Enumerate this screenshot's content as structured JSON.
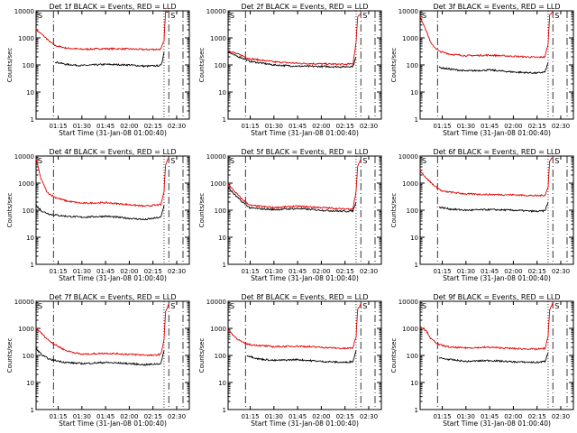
{
  "common": {
    "xlabel": "Start Time (31-Jan-08 01:00:40)",
    "ylabel": "Counts/sec",
    "x_ticks": [
      "01:15",
      "01:30",
      "01:45",
      "02:00",
      "02:15",
      "02:30"
    ],
    "y_ticks": [
      "1",
      "10",
      "100",
      "1000",
      "10000"
    ],
    "corner_labels": [
      "S",
      "S"
    ],
    "series": [
      {
        "name": "Events",
        "color": "#000000"
      },
      {
        "name": "LLD",
        "color": "#e00000"
      }
    ]
  },
  "chart_data": [
    {
      "type": "line",
      "title": "Det 1f BLACK = Events, RED = LLD",
      "xlabel": "Start Time (31-Jan-08 01:00:40)",
      "ylabel": "Counts/sec",
      "y_scale": "log",
      "ylim": [
        1,
        10000
      ],
      "xlim": [
        "01:01",
        "02:38"
      ],
      "x_ticks": [
        "01:15",
        "01:30",
        "01:45",
        "02:00",
        "02:15",
        "02:30"
      ],
      "lld": [
        [
          "01:01",
          2000
        ],
        [
          "01:05",
          1300
        ],
        [
          "01:10",
          700
        ],
        [
          "01:13",
          520
        ],
        [
          "01:20",
          420
        ],
        [
          "01:30",
          380
        ],
        [
          "01:45",
          400
        ],
        [
          "02:00",
          390
        ],
        [
          "02:10",
          370
        ],
        [
          "02:20",
          380
        ],
        [
          "02:22",
          800
        ],
        [
          "02:23",
          9000
        ],
        [
          "02:25",
          10000
        ]
      ],
      "events": [
        [
          "01:13",
          130
        ],
        [
          "01:20",
          105
        ],
        [
          "01:30",
          95
        ],
        [
          "01:45",
          105
        ],
        [
          "02:00",
          100
        ],
        [
          "02:10",
          90
        ],
        [
          "02:20",
          95
        ],
        [
          "02:21",
          150
        ],
        [
          "02:22",
          300
        ]
      ],
      "vlines": [
        {
          "t": "01:12",
          "style": "dashdot"
        },
        {
          "t": "02:22",
          "style": "dotted"
        },
        {
          "t": "02:25",
          "style": "dashdot"
        },
        {
          "t": "02:34",
          "style": "dashdot"
        }
      ]
    },
    {
      "type": "line",
      "title": "Det 2f BLACK = Events, RED = LLD",
      "xlabel": "Start Time (31-Jan-08 01:00:40)",
      "ylabel": "Counts/sec",
      "y_scale": "log",
      "ylim": [
        1,
        10000
      ],
      "xlim": [
        "01:01",
        "02:38"
      ],
      "x_ticks": [
        "01:15",
        "01:30",
        "01:45",
        "02:00",
        "02:15",
        "02:30"
      ],
      "lld": [
        [
          "01:01",
          350
        ],
        [
          "01:05",
          280
        ],
        [
          "01:10",
          220
        ],
        [
          "01:15",
          170
        ],
        [
          "01:30",
          130
        ],
        [
          "01:45",
          115
        ],
        [
          "02:00",
          110
        ],
        [
          "02:15",
          105
        ],
        [
          "02:20",
          110
        ],
        [
          "02:22",
          700
        ],
        [
          "02:23",
          6000
        ],
        [
          "02:25",
          8000
        ]
      ],
      "events": [
        [
          "01:01",
          300
        ],
        [
          "01:05",
          230
        ],
        [
          "01:10",
          180
        ],
        [
          "01:15",
          135
        ],
        [
          "01:30",
          100
        ],
        [
          "01:45",
          90
        ],
        [
          "02:00",
          88
        ],
        [
          "02:15",
          85
        ],
        [
          "02:20",
          90
        ],
        [
          "02:22",
          200
        ]
      ],
      "vlines": [
        {
          "t": "01:12",
          "style": "dashdot"
        },
        {
          "t": "02:22",
          "style": "dotted"
        },
        {
          "t": "02:25",
          "style": "dashdot"
        },
        {
          "t": "02:34",
          "style": "dashdot"
        }
      ]
    },
    {
      "type": "line",
      "title": "Det 3f BLACK = Events, RED = LLD",
      "xlabel": "Start Time (31-Jan-08 01:00:40)",
      "ylabel": "Counts/sec",
      "y_scale": "log",
      "ylim": [
        1,
        10000
      ],
      "xlim": [
        "01:01",
        "02:38"
      ],
      "x_ticks": [
        "01:15",
        "01:30",
        "01:45",
        "02:00",
        "02:15",
        "02:30"
      ],
      "lld": [
        [
          "01:01",
          6000
        ],
        [
          "01:04",
          2500
        ],
        [
          "01:08",
          600
        ],
        [
          "01:13",
          320
        ],
        [
          "01:20",
          250
        ],
        [
          "01:30",
          220
        ],
        [
          "01:45",
          230
        ],
        [
          "02:00",
          210
        ],
        [
          "02:15",
          190
        ],
        [
          "02:20",
          200
        ],
        [
          "02:22",
          600
        ],
        [
          "02:23",
          7000
        ],
        [
          "02:25",
          10000
        ]
      ],
      "events": [
        [
          "01:13",
          80
        ],
        [
          "01:20",
          70
        ],
        [
          "01:30",
          60
        ],
        [
          "01:45",
          65
        ],
        [
          "02:00",
          55
        ],
        [
          "02:15",
          50
        ],
        [
          "02:20",
          55
        ],
        [
          "02:22",
          120
        ]
      ],
      "vlines": [
        {
          "t": "01:12",
          "style": "dashdot"
        },
        {
          "t": "02:22",
          "style": "dotted"
        },
        {
          "t": "02:25",
          "style": "dashdot"
        },
        {
          "t": "02:34",
          "style": "dashdot"
        }
      ]
    },
    {
      "type": "line",
      "title": "Det 4f BLACK = Events, RED = LLD",
      "xlabel": "Start Time (31-Jan-08 01:00:40)",
      "ylabel": "Counts/sec",
      "y_scale": "log",
      "ylim": [
        1,
        10000
      ],
      "xlim": [
        "01:01",
        "02:38"
      ],
      "x_ticks": [
        "01:15",
        "01:30",
        "01:45",
        "02:00",
        "02:15",
        "02:30"
      ],
      "lld": [
        [
          "01:01",
          8000
        ],
        [
          "01:04",
          1500
        ],
        [
          "01:08",
          450
        ],
        [
          "01:13",
          300
        ],
        [
          "01:20",
          220
        ],
        [
          "01:30",
          180
        ],
        [
          "01:45",
          190
        ],
        [
          "02:00",
          160
        ],
        [
          "02:10",
          140
        ],
        [
          "02:20",
          160
        ],
        [
          "02:22",
          500
        ],
        [
          "02:23",
          5000
        ],
        [
          "02:25",
          9000
        ]
      ],
      "events": [
        [
          "01:01",
          150
        ],
        [
          "01:05",
          90
        ],
        [
          "01:10",
          70
        ],
        [
          "01:20",
          60
        ],
        [
          "01:30",
          55
        ],
        [
          "01:45",
          60
        ],
        [
          "02:00",
          50
        ],
        [
          "02:10",
          45
        ],
        [
          "02:20",
          55
        ],
        [
          "02:22",
          150
        ]
      ],
      "vlines": [
        {
          "t": "01:12",
          "style": "dashdot"
        },
        {
          "t": "02:22",
          "style": "dotted"
        },
        {
          "t": "02:25",
          "style": "dashdot"
        },
        {
          "t": "02:34",
          "style": "dashdot"
        }
      ]
    },
    {
      "type": "line",
      "title": "Det 5f BLACK = Events, RED = LLD",
      "xlabel": "Start Time (31-Jan-08 01:00:40)",
      "ylabel": "Counts/sec",
      "y_scale": "log",
      "ylim": [
        1,
        10000
      ],
      "xlim": [
        "01:01",
        "02:38"
      ],
      "x_ticks": [
        "01:15",
        "01:30",
        "01:45",
        "02:00",
        "02:15",
        "02:30"
      ],
      "lld": [
        [
          "01:01",
          900
        ],
        [
          "01:05",
          500
        ],
        [
          "01:10",
          250
        ],
        [
          "01:15",
          150
        ],
        [
          "01:30",
          125
        ],
        [
          "01:45",
          140
        ],
        [
          "02:00",
          125
        ],
        [
          "02:15",
          110
        ],
        [
          "02:20",
          115
        ],
        [
          "02:22",
          500
        ],
        [
          "02:23",
          4000
        ],
        [
          "02:25",
          8000
        ]
      ],
      "events": [
        [
          "01:01",
          700
        ],
        [
          "01:05",
          380
        ],
        [
          "01:10",
          200
        ],
        [
          "01:15",
          120
        ],
        [
          "01:30",
          105
        ],
        [
          "01:45",
          115
        ],
        [
          "02:00",
          100
        ],
        [
          "02:15",
          90
        ],
        [
          "02:20",
          95
        ],
        [
          "02:22",
          200
        ]
      ],
      "vlines": [
        {
          "t": "01:12",
          "style": "dashdot"
        },
        {
          "t": "02:22",
          "style": "dotted"
        },
        {
          "t": "02:25",
          "style": "dashdot"
        },
        {
          "t": "02:34",
          "style": "dashdot"
        }
      ]
    },
    {
      "type": "line",
      "title": "Det 6f BLACK = Events, RED = LLD",
      "xlabel": "Start Time (31-Jan-08 01:00:40)",
      "ylabel": "Counts/sec",
      "y_scale": "log",
      "ylim": [
        1,
        10000
      ],
      "xlim": [
        "01:01",
        "02:38"
      ],
      "x_ticks": [
        "01:15",
        "01:30",
        "01:45",
        "02:00",
        "02:15",
        "02:30"
      ],
      "lld": [
        [
          "01:01",
          3000
        ],
        [
          "01:05",
          1500
        ],
        [
          "01:10",
          800
        ],
        [
          "01:15",
          500
        ],
        [
          "01:30",
          400
        ],
        [
          "01:45",
          380
        ],
        [
          "02:00",
          370
        ],
        [
          "02:15",
          340
        ],
        [
          "02:20",
          360
        ],
        [
          "02:22",
          700
        ],
        [
          "02:23",
          7000
        ],
        [
          "02:25",
          9000
        ]
      ],
      "events": [
        [
          "01:13",
          130
        ],
        [
          "01:20",
          110
        ],
        [
          "01:30",
          100
        ],
        [
          "01:45",
          105
        ],
        [
          "02:00",
          100
        ],
        [
          "02:15",
          90
        ],
        [
          "02:20",
          95
        ],
        [
          "02:22",
          200
        ]
      ],
      "vlines": [
        {
          "t": "01:12",
          "style": "dashdot"
        },
        {
          "t": "02:22",
          "style": "dotted"
        },
        {
          "t": "02:25",
          "style": "dashdot"
        },
        {
          "t": "02:34",
          "style": "dashdot"
        }
      ]
    },
    {
      "type": "line",
      "title": "Det 7f BLACK = Events, RED = LLD",
      "xlabel": "Start Time (31-Jan-08 01:00:40)",
      "ylabel": "Counts/sec",
      "y_scale": "log",
      "ylim": [
        1,
        10000
      ],
      "xlim": [
        "01:01",
        "02:38"
      ],
      "x_ticks": [
        "01:15",
        "01:30",
        "01:45",
        "02:00",
        "02:15",
        "02:30"
      ],
      "lld": [
        [
          "01:01",
          1000
        ],
        [
          "01:04",
          700
        ],
        [
          "01:08",
          400
        ],
        [
          "01:13",
          250
        ],
        [
          "01:20",
          150
        ],
        [
          "01:30",
          110
        ],
        [
          "01:45",
          120
        ],
        [
          "02:00",
          110
        ],
        [
          "02:15",
          100
        ],
        [
          "02:20",
          110
        ],
        [
          "02:22",
          400
        ],
        [
          "02:23",
          4000
        ],
        [
          "02:25",
          8000
        ]
      ],
      "events": [
        [
          "01:01",
          180
        ],
        [
          "01:05",
          100
        ],
        [
          "01:10",
          70
        ],
        [
          "01:20",
          55
        ],
        [
          "01:30",
          50
        ],
        [
          "01:45",
          55
        ],
        [
          "02:00",
          50
        ],
        [
          "02:10",
          45
        ],
        [
          "02:20",
          50
        ],
        [
          "02:22",
          150
        ]
      ],
      "vlines": [
        {
          "t": "01:12",
          "style": "dashdot"
        },
        {
          "t": "02:22",
          "style": "dotted"
        },
        {
          "t": "02:25",
          "style": "dashdot"
        },
        {
          "t": "02:34",
          "style": "dashdot"
        }
      ]
    },
    {
      "type": "line",
      "title": "Det 8f BLACK = Events, RED = LLD",
      "xlabel": "Start Time (31-Jan-08 01:00:40)",
      "ylabel": "Counts/sec",
      "y_scale": "log",
      "ylim": [
        1,
        10000
      ],
      "xlim": [
        "01:01",
        "02:38"
      ],
      "x_ticks": [
        "01:15",
        "01:30",
        "01:45",
        "02:00",
        "02:15",
        "02:30"
      ],
      "lld": [
        [
          "01:01",
          900
        ],
        [
          "01:05",
          500
        ],
        [
          "01:10",
          300
        ],
        [
          "01:15",
          250
        ],
        [
          "01:30",
          210
        ],
        [
          "01:45",
          220
        ],
        [
          "02:00",
          200
        ],
        [
          "02:15",
          180
        ],
        [
          "02:20",
          190
        ],
        [
          "02:22",
          500
        ],
        [
          "02:23",
          5000
        ],
        [
          "02:25",
          8000
        ]
      ],
      "events": [
        [
          "01:13",
          100
        ],
        [
          "01:20",
          75
        ],
        [
          "01:30",
          65
        ],
        [
          "01:45",
          70
        ],
        [
          "02:00",
          60
        ],
        [
          "02:15",
          55
        ],
        [
          "02:20",
          60
        ],
        [
          "02:22",
          150
        ]
      ],
      "vlines": [
        {
          "t": "01:12",
          "style": "dashdot"
        },
        {
          "t": "02:22",
          "style": "dotted"
        },
        {
          "t": "02:25",
          "style": "dashdot"
        },
        {
          "t": "02:34",
          "style": "dashdot"
        }
      ]
    },
    {
      "type": "line",
      "title": "Det 9f BLACK = Events, RED = LLD",
      "xlabel": "Start Time (31-Jan-08 01:00:40)",
      "ylabel": "Counts/sec",
      "y_scale": "log",
      "ylim": [
        1,
        10000
      ],
      "xlim": [
        "01:01",
        "02:38"
      ],
      "x_ticks": [
        "01:15",
        "01:30",
        "01:45",
        "02:00",
        "02:15",
        "02:30"
      ],
      "lld": [
        [
          "01:01",
          1200
        ],
        [
          "01:05",
          800
        ],
        [
          "01:08",
          400
        ],
        [
          "01:13",
          250
        ],
        [
          "01:20",
          200
        ],
        [
          "01:30",
          190
        ],
        [
          "01:45",
          200
        ],
        [
          "02:00",
          180
        ],
        [
          "02:15",
          170
        ],
        [
          "02:20",
          180
        ],
        [
          "02:22",
          500
        ],
        [
          "02:23",
          5000
        ],
        [
          "02:25",
          9000
        ]
      ],
      "events": [
        [
          "01:13",
          80
        ],
        [
          "01:20",
          70
        ],
        [
          "01:30",
          60
        ],
        [
          "01:45",
          65
        ],
        [
          "02:00",
          58
        ],
        [
          "02:15",
          55
        ],
        [
          "02:20",
          60
        ],
        [
          "02:22",
          130
        ]
      ],
      "vlines": [
        {
          "t": "01:12",
          "style": "dashdot"
        },
        {
          "t": "02:22",
          "style": "dotted"
        },
        {
          "t": "02:25",
          "style": "dashdot"
        },
        {
          "t": "02:34",
          "style": "dashdot"
        }
      ]
    }
  ]
}
